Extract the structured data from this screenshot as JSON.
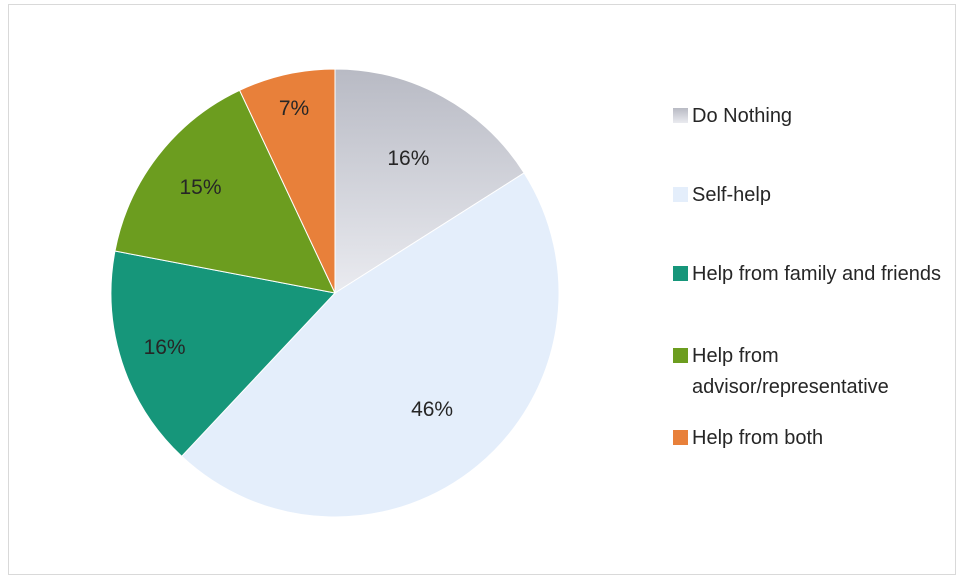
{
  "chart_data": {
    "type": "pie",
    "title": "",
    "slices": [
      {
        "label": "Do Nothing",
        "value": 16,
        "display": "16%",
        "color": "#c6c8d0",
        "gradient": [
          "#b8bac4",
          "#eaebf0"
        ]
      },
      {
        "label": "Self-help",
        "value": 46,
        "display": "46%",
        "color": "#e4eefb"
      },
      {
        "label": "Help from family and friends",
        "value": 16,
        "display": "16%",
        "color": "#16967a"
      },
      {
        "label": "Help from advisor/representative",
        "value": 15,
        "display": "15%",
        "color": "#6c9d1f"
      },
      {
        "label": "Help from both",
        "value": 7,
        "display": "7%",
        "color": "#e8803a"
      }
    ],
    "legend_position": "right",
    "start_angle": "12 o'clock",
    "direction": "clockwise"
  },
  "legend": {
    "items": [
      {
        "label": "Do Nothing"
      },
      {
        "label": "Self-help"
      },
      {
        "label": "Help from family and friends"
      },
      {
        "label": "Help from advisor/representative"
      },
      {
        "label": "Help from both"
      }
    ]
  }
}
